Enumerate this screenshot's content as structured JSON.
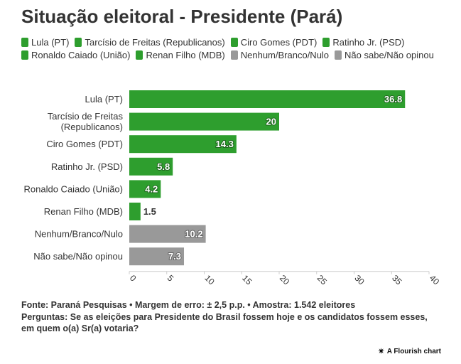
{
  "header": {
    "title": "Situação eleitoral - Presidente (Pará)"
  },
  "legend": [
    {
      "label": "Lula (PT)",
      "color": "#2e9e2e"
    },
    {
      "label": "Tarcísio de Freitas (Republicanos)",
      "color": "#2e9e2e"
    },
    {
      "label": "Ciro Gomes (PDT)",
      "color": "#2e9e2e"
    },
    {
      "label": "Ratinho Jr. (PSD)",
      "color": "#2e9e2e"
    },
    {
      "label": "Ronaldo Caiado (União)",
      "color": "#2e9e2e"
    },
    {
      "label": "Renan Filho (MDB)",
      "color": "#2e9e2e"
    },
    {
      "label": "Nenhum/Branco/Nulo",
      "color": "#999999"
    },
    {
      "label": "Não sabe/Não opinou",
      "color": "#999999"
    }
  ],
  "chart_data": {
    "type": "bar",
    "orientation": "horizontal",
    "title": "Situação eleitoral - Presidente (Pará)",
    "categories": [
      [
        "Lula (PT)"
      ],
      [
        "Tarcísio de Freitas",
        "(Republicanos)"
      ],
      [
        "Ciro Gomes (PDT)"
      ],
      [
        "Ratinho Jr. (PSD)"
      ],
      [
        "Ronaldo Caiado (União)"
      ],
      [
        "Renan Filho (MDB)"
      ],
      [
        "Nenhum/Branco/Nulo"
      ],
      [
        "Não sabe/Não opinou"
      ]
    ],
    "values": [
      36.8,
      20,
      14.3,
      5.8,
      4.2,
      1.5,
      10.2,
      7.3
    ],
    "value_labels": [
      "36.8",
      "20",
      "14.3",
      "5.8",
      "4.2",
      "1.5",
      "10.2",
      "7.3"
    ],
    "colors": [
      "#2e9e2e",
      "#2e9e2e",
      "#2e9e2e",
      "#2e9e2e",
      "#2e9e2e",
      "#2e9e2e",
      "#999999",
      "#999999"
    ],
    "xlim": [
      0,
      40
    ],
    "xticks": [
      0,
      5,
      10,
      15,
      20,
      25,
      30,
      35,
      40
    ],
    "xlabel": "",
    "ylabel": "",
    "grid": false
  },
  "footer": {
    "source": "Fonte: Paraná Pesquisas • Margem de erro: ± 2,5 p.p. • Amostra: 1.542 eleitores",
    "question": "Perguntas: Se as eleições para Presidente do Brasil fossem hoje e os candidatos fossem esses, em quem o(a) Sr(a) votaria?"
  },
  "credit": {
    "icon": "flourish-icon",
    "text": "A Flourish chart"
  }
}
